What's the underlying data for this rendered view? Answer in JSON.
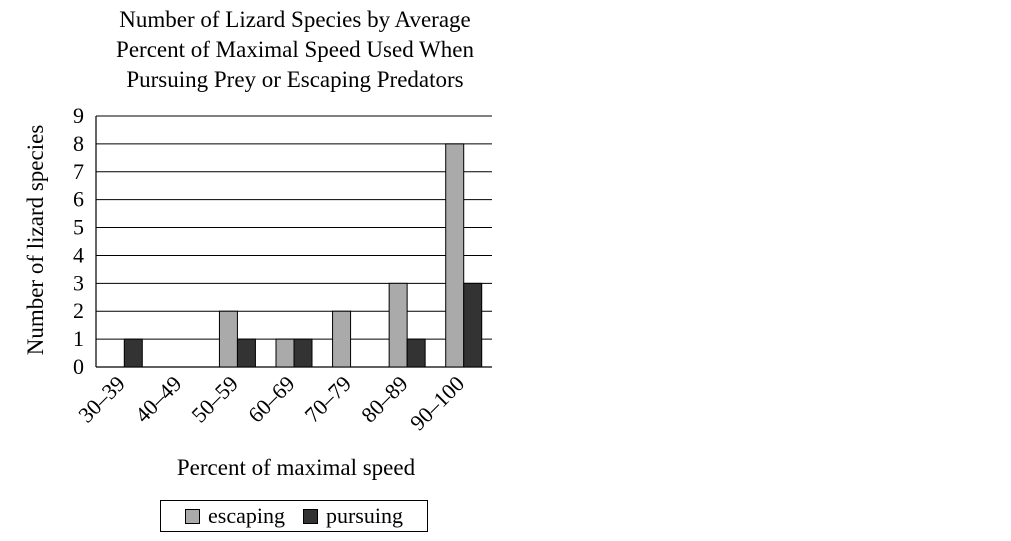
{
  "chart_data": {
    "type": "bar",
    "title_lines": [
      "Number of Lizard Species by Average",
      "Percent of Maximal Speed Used When",
      "Pursuing Prey or Escaping Predators"
    ],
    "xlabel": "Percent of maximal speed",
    "ylabel": "Number of lizard species",
    "categories": [
      "30–39",
      "40–49",
      "50–59",
      "60–69",
      "70–79",
      "80–89",
      "90–100"
    ],
    "series": [
      {
        "name": "escaping",
        "color": "#aaaaaa",
        "values": [
          0,
          0,
          2,
          1,
          2,
          3,
          8
        ]
      },
      {
        "name": "pursuing",
        "color": "#333333",
        "values": [
          1,
          0,
          1,
          1,
          0,
          1,
          3
        ]
      }
    ],
    "ylim": [
      0,
      9
    ],
    "yticks": [
      0,
      1,
      2,
      3,
      4,
      5,
      6,
      7,
      8,
      9
    ],
    "grid": true,
    "legend_position": "bottom"
  }
}
